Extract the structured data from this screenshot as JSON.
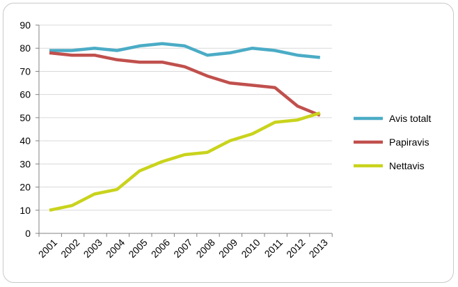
{
  "chart_data": {
    "type": "line",
    "title": "",
    "xlabel": "",
    "ylabel": "",
    "categories": [
      "2001",
      "2002",
      "2003",
      "2004",
      "2005",
      "2006",
      "2007",
      "2008",
      "2009",
      "2010",
      "2011",
      "2012",
      "2013"
    ],
    "ylim": [
      0,
      90
    ],
    "yticks": [
      0,
      10,
      20,
      30,
      40,
      50,
      60,
      70,
      80,
      90
    ],
    "grid": "horizontal",
    "legend_position": "right",
    "series": [
      {
        "name": "Avis totalt",
        "color": "#4bacc6",
        "values": [
          79,
          79,
          80,
          79,
          81,
          82,
          81,
          77,
          78,
          80,
          79,
          77,
          76
        ]
      },
      {
        "name": "Papiravis",
        "color": "#c0504d",
        "values": [
          78,
          77,
          77,
          75,
          74,
          74,
          72,
          68,
          65,
          64,
          63,
          55,
          51
        ]
      },
      {
        "name": "Nettavis",
        "color": "#c9d31c",
        "values": [
          10,
          12,
          17,
          19,
          27,
          31,
          34,
          35,
          40,
          43,
          48,
          49,
          52
        ]
      }
    ]
  }
}
